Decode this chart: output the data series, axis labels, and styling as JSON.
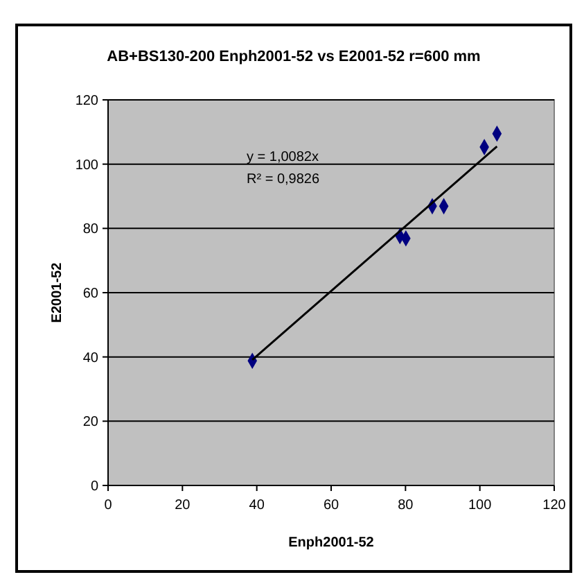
{
  "chart_data": {
    "type": "scatter",
    "title": "AB+BS130-200 Enph2001-52 vs E2001-52 r=600 mm",
    "xlabel": "Enph2001-52",
    "ylabel": "E2001-52",
    "annotations": [
      "y = 1,0082x",
      "R² = 0,9826"
    ],
    "xlim": [
      0,
      120
    ],
    "xticks": [
      0,
      20,
      40,
      60,
      80,
      100,
      120
    ],
    "ylim": [
      0,
      120
    ],
    "yticks": [
      0,
      20,
      40,
      60,
      80,
      100,
      120
    ],
    "grid": "y",
    "marker": "diamond",
    "series": [
      {
        "color": "#000080",
        "x": [
          38.8,
          78.5,
          80.1,
          87.2,
          90.3,
          101.2,
          104.6
        ],
        "values": [
          38.8,
          77.6,
          76.9,
          86.9,
          86.9,
          105.3,
          109.5
        ]
      },
      {
        "type": "line",
        "color": "#000000",
        "marker": "none",
        "line_style": "solid",
        "x": [
          38.8,
          104.6
        ],
        "values": [
          39.1,
          105.5
        ]
      }
    ]
  }
}
